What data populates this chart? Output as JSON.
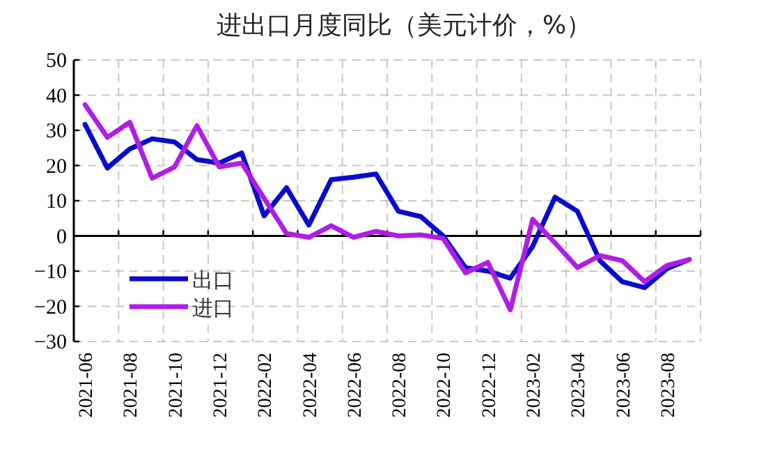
{
  "chart_data": {
    "type": "line",
    "title": "进出口月度同比（美元计价，%）",
    "categories": [
      "2021-06",
      null,
      "2021-08",
      null,
      "2021-10",
      null,
      "2021-12",
      null,
      "2022-02",
      null,
      "2022-04",
      null,
      "2022-06",
      null,
      "2022-08",
      null,
      "2022-10",
      null,
      "2022-12",
      null,
      "2023-02",
      null,
      "2023-04",
      null,
      "2023-06",
      null,
      "2023-08",
      null
    ],
    "series": [
      {
        "name": "出口",
        "color": "#0a0acc",
        "values": [
          31.7,
          19.3,
          24.7,
          27.6,
          26.7,
          21.7,
          20.7,
          23.6,
          5.7,
          13.7,
          3.1,
          16,
          16.7,
          17.6,
          7,
          5.5,
          0,
          -9,
          -10,
          -12,
          -3,
          11,
          7,
          -7,
          -13,
          -14.7,
          -9.3,
          -6.7
        ]
      },
      {
        "name": "进口",
        "color": "#b01ee6",
        "values": [
          37.3,
          28,
          32.3,
          16.4,
          19.6,
          31.3,
          19.6,
          20.7,
          10.7,
          0.7,
          -0.4,
          2.9,
          -0.4,
          1.3,
          0,
          0.3,
          -0.7,
          -10.5,
          -7.5,
          -21,
          4.7,
          -2,
          -9,
          -5.6,
          -7,
          -13,
          -8.4,
          -6.7
        ]
      }
    ],
    "ylim": [
      -30,
      50
    ],
    "yticks": [
      -30,
      -20,
      -10,
      0,
      10,
      20,
      30,
      40,
      50
    ],
    "grid": true,
    "legend": "bottom left",
    "marker": "none",
    "line_style": "solid"
  }
}
